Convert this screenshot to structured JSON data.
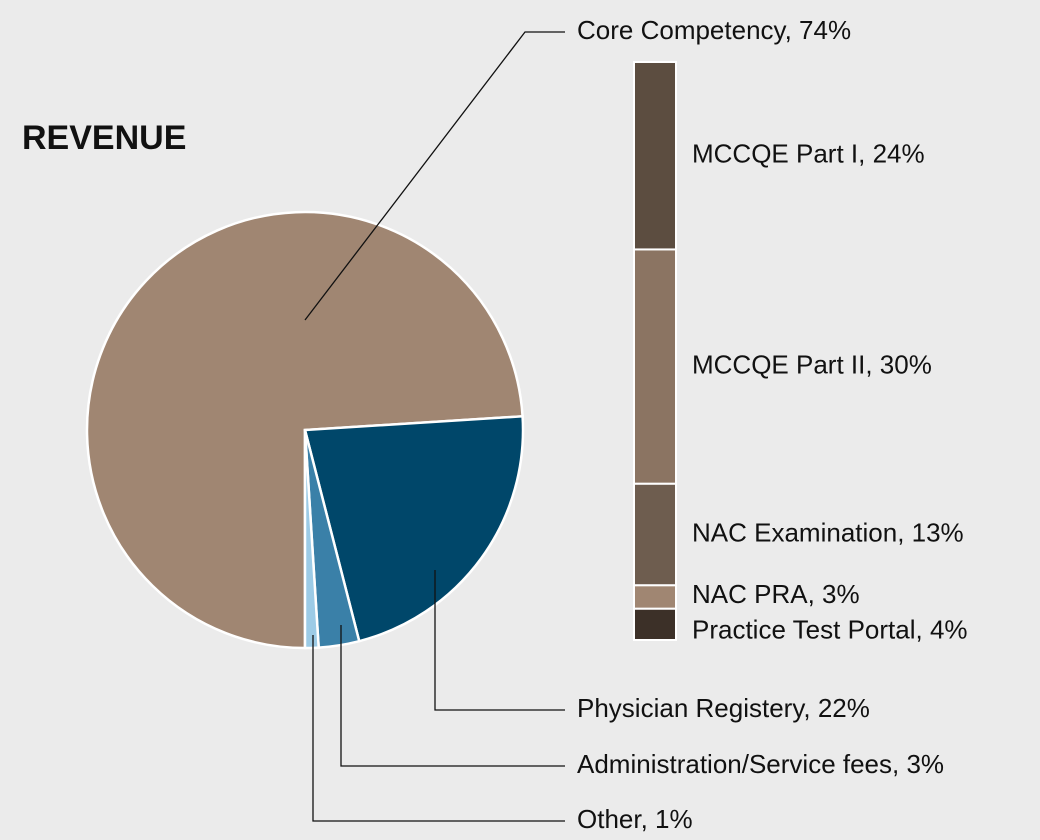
{
  "chart_data": {
    "type": "bar-of-pie",
    "title": "REVENUE",
    "pie": {
      "labels": [
        "Core Competency, 74%",
        "Physician Registery, 22%",
        "Administration/Service fees, 3%",
        "Other, 1%"
      ],
      "values": [
        74,
        22,
        3,
        1
      ],
      "colors": [
        "#a08672",
        "#00476a",
        "#3a80a8",
        "#9ccbe6"
      ]
    },
    "bar": {
      "labels": [
        "MCCQE Part I, 24%",
        "MCCQE Part II, 30%",
        "NAC Examination, 13%",
        "NAC PRA, 3%",
        "Practice Test Portal, 4%"
      ],
      "values": [
        24,
        30,
        13,
        3,
        4
      ],
      "colors": [
        "#5c4d40",
        "#8b7462",
        "#6e5d4f",
        "#a08672",
        "#3c3028"
      ]
    }
  }
}
